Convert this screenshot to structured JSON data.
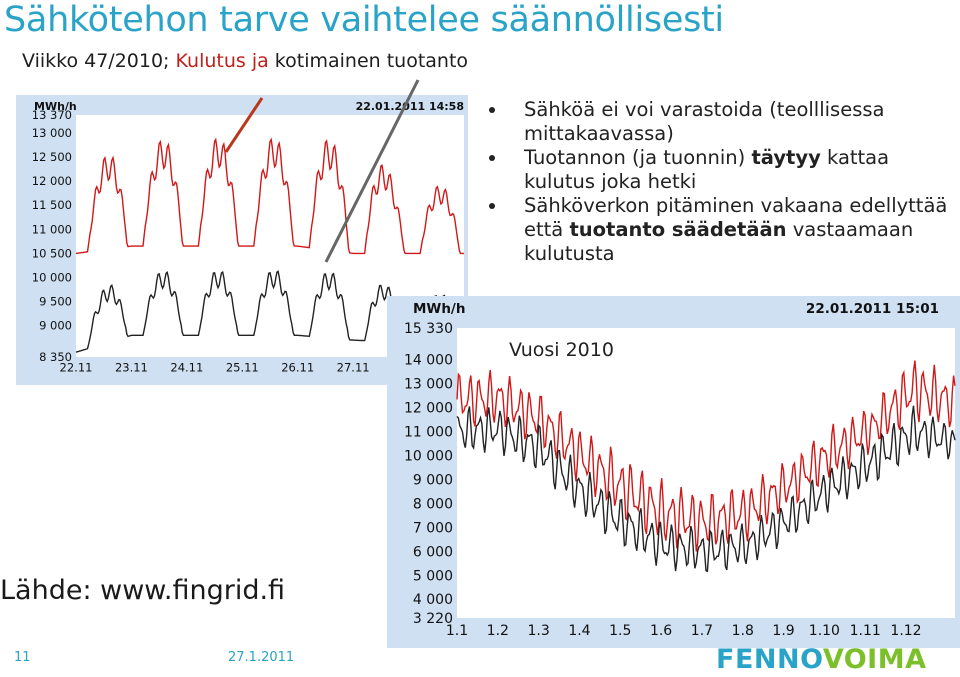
{
  "title": "Sähkötehon tarve vaihtelee säännöllisesti",
  "subtitle": {
    "part1": "Viikko 47/2010; ",
    "part2": "Kulutus ja",
    "part3": " kotimainen tuotanto"
  },
  "bullets": [
    {
      "text": "Sähköä ei voi varastoida (teolllisessa mittakaavassa)"
    },
    {
      "pre": "Tuotannon (ja tuonnin) ",
      "bold": "täytyy",
      "post": " kattaa kulutus joka hetki"
    },
    {
      "pre": "Sähköverkon pitäminen vakaana edellyttää että ",
      "bold": "tuotanto säädetään",
      "post": " vastaamaan kulutusta"
    }
  ],
  "source": "Lähde: www.fingrid.fi",
  "page_number": "11",
  "date": "27.1.2011",
  "logo": {
    "part1": "FENNO",
    "part2": "VOIMA"
  },
  "colors": {
    "title": "#2aa3c8",
    "consumption": "#d01818",
    "production": "#222222",
    "chart_bg": "#cfe0f3",
    "logo_green": "#7bbf2b",
    "pointer_red": "#b83a1e",
    "pointer_gray": "#666666"
  },
  "chart_data": [
    {
      "type": "line",
      "unit_label": "MWh/h",
      "timestamp": "22.01.2011 14:58",
      "y_ticks": [
        "13 370",
        "13 000",
        "12 500",
        "12 000",
        "11 500",
        "11 000",
        "10 500",
        "10 000",
        "9 500",
        "9 000",
        "8 350"
      ],
      "ylim": [
        8350,
        13370
      ],
      "x_ticks": [
        "22.11",
        "23.11",
        "24.11",
        "25.11",
        "26.11",
        "27.11"
      ],
      "series": [
        {
          "color": "#d01818",
          "daily_peak": [
            12250,
            12800,
            12950,
            12900,
            12950,
            12850,
            11950,
            11900
          ],
          "daily_low": [
            10500,
            10650,
            10650,
            10650,
            10650,
            10500,
            10500,
            10500
          ]
        },
        {
          "color": "#222222",
          "daily_peak": [
            9500,
            10100,
            10200,
            10150,
            10200,
            10100,
            9700,
            9650
          ],
          "daily_low": [
            8450,
            8800,
            8800,
            8800,
            8800,
            8700,
            8650,
            8650
          ]
        }
      ]
    },
    {
      "type": "line",
      "unit_label": "MWh/h",
      "timestamp": "22.01.2011 15:01",
      "annotation": "Vuosi 2010",
      "y_ticks": [
        "15 330",
        "14 000",
        "13 000",
        "12 000",
        "11 000",
        "10 000",
        "9 000",
        "8 000",
        "7 000",
        "6 000",
        "5 000",
        "4 000",
        "3 220"
      ],
      "ylim": [
        3220,
        15330
      ],
      "x_ticks": [
        "1.1",
        "1.2",
        "1.3",
        "1.4",
        "1.5",
        "1.6",
        "1.7",
        "1.8",
        "1.9",
        "1.10",
        "1.11",
        "1.12"
      ],
      "series": [
        {
          "color": "#d01818",
          "monthly_peak": [
            13600,
            13600,
            12700,
            11200,
            10100,
            9000,
            8500,
            8900,
            9900,
            11300,
            12200,
            14200,
            13400
          ],
          "monthly_low": [
            11100,
            11200,
            10300,
            8700,
            7200,
            6100,
            5900,
            6400,
            7700,
            8900,
            10100,
            11400,
            11000
          ]
        },
        {
          "color": "#222222",
          "monthly_peak": [
            12100,
            12100,
            11400,
            9600,
            8300,
            7300,
            7000,
            7200,
            8300,
            9700,
            10800,
            12100,
            11300
          ],
          "monthly_low": [
            10000,
            10100,
            9200,
            7400,
            6100,
            5200,
            5000,
            5300,
            6400,
            7700,
            8700,
            9900,
            9800
          ]
        }
      ]
    }
  ]
}
